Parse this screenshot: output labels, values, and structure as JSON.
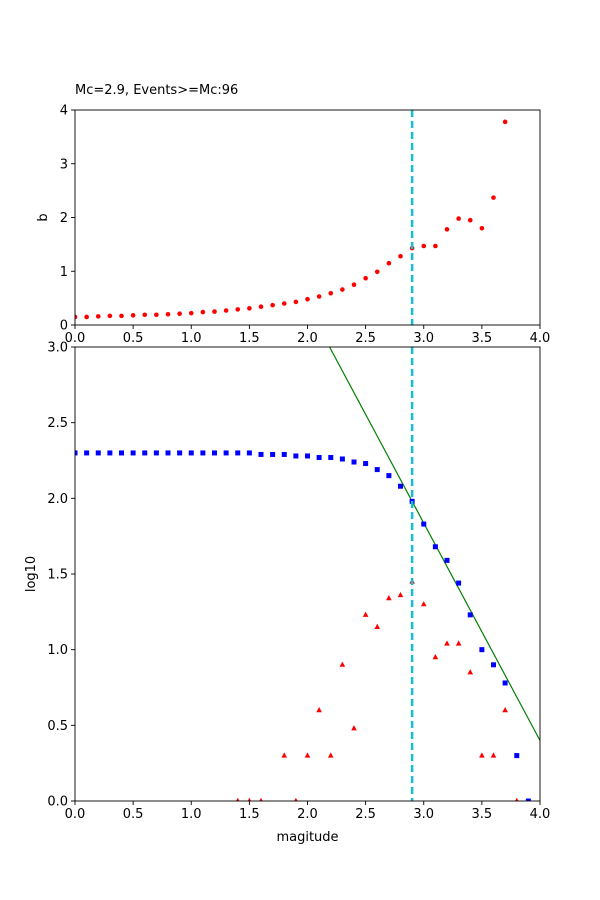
{
  "chart_data": [
    {
      "type": "scatter",
      "title": "Mc=2.9, Events>=Mc:96",
      "xlabel": "",
      "ylabel": "b",
      "xlim": [
        0,
        4
      ],
      "ylim": [
        0,
        4
      ],
      "xticks": [
        0.0,
        0.5,
        1.0,
        1.5,
        2.0,
        2.5,
        3.0,
        3.5,
        4.0
      ],
      "xtick_labels": [
        "0.0",
        "0.5",
        "1.0",
        "1.5",
        "2.0",
        "2.5",
        "3.0",
        "3.5",
        "4.0"
      ],
      "yticks": [
        0,
        1,
        2,
        3,
        4
      ],
      "ytick_labels": [
        "0",
        "1",
        "2",
        "3",
        "4"
      ],
      "grid": false,
      "mc_line": {
        "x": 2.9,
        "color": "#17becf",
        "style": "dashed"
      },
      "series": [
        {
          "marker": "circle",
          "color": "#ff0000",
          "x": [
            0.0,
            0.1,
            0.2,
            0.3,
            0.4,
            0.5,
            0.6,
            0.7,
            0.8,
            0.9,
            1.0,
            1.1,
            1.2,
            1.3,
            1.4,
            1.5,
            1.6,
            1.7,
            1.8,
            1.9,
            2.0,
            2.1,
            2.2,
            2.3,
            2.4,
            2.5,
            2.6,
            2.7,
            2.8,
            2.9,
            3.0,
            3.1,
            3.2,
            3.3,
            3.4,
            3.5,
            3.6,
            3.7
          ],
          "y": [
            0.15,
            0.15,
            0.16,
            0.17,
            0.17,
            0.18,
            0.19,
            0.19,
            0.2,
            0.21,
            0.22,
            0.24,
            0.25,
            0.27,
            0.29,
            0.31,
            0.34,
            0.37,
            0.4,
            0.43,
            0.48,
            0.53,
            0.59,
            0.66,
            0.75,
            0.87,
            0.99,
            1.15,
            1.28,
            1.43,
            1.47,
            1.47,
            1.78,
            1.98,
            1.95,
            1.8,
            2.37,
            3.78
          ]
        }
      ]
    },
    {
      "type": "scatter",
      "title": "",
      "xlabel": "magitude",
      "ylabel": "log10",
      "xlim": [
        0,
        4
      ],
      "ylim": [
        0,
        3
      ],
      "xticks": [
        0.0,
        0.5,
        1.0,
        1.5,
        2.0,
        2.5,
        3.0,
        3.5,
        4.0
      ],
      "xtick_labels": [
        "0.0",
        "0.5",
        "1.0",
        "1.5",
        "2.0",
        "2.5",
        "3.0",
        "3.5",
        "4.0"
      ],
      "yticks": [
        0.0,
        0.5,
        1.0,
        1.5,
        2.0,
        2.5,
        3.0
      ],
      "ytick_labels": [
        "0.0",
        "0.5",
        "1.0",
        "1.5",
        "2.0",
        "2.5",
        "3.0"
      ],
      "grid": false,
      "mc_line": {
        "x": 2.9,
        "color": "#17becf",
        "style": "dashed"
      },
      "fit_line": {
        "color": "#008000",
        "x": [
          2.19,
          4.0
        ],
        "y": [
          3.0,
          0.4
        ]
      },
      "series": [
        {
          "marker": "square",
          "color": "#0000ff",
          "x": [
            0.0,
            0.1,
            0.2,
            0.3,
            0.4,
            0.5,
            0.6,
            0.7,
            0.8,
            0.9,
            1.0,
            1.1,
            1.2,
            1.3,
            1.4,
            1.5,
            1.6,
            1.7,
            1.8,
            1.9,
            2.0,
            2.1,
            2.2,
            2.3,
            2.4,
            2.5,
            2.6,
            2.7,
            2.8,
            2.9,
            3.0,
            3.1,
            3.2,
            3.3,
            3.4,
            3.5,
            3.6,
            3.7,
            3.8,
            3.9
          ],
          "y": [
            2.3,
            2.3,
            2.3,
            2.3,
            2.3,
            2.3,
            2.3,
            2.3,
            2.3,
            2.3,
            2.3,
            2.3,
            2.3,
            2.3,
            2.3,
            2.3,
            2.29,
            2.29,
            2.29,
            2.28,
            2.28,
            2.27,
            2.27,
            2.26,
            2.24,
            2.23,
            2.19,
            2.15,
            2.08,
            1.98,
            1.83,
            1.68,
            1.59,
            1.44,
            1.23,
            1.0,
            0.9,
            0.78,
            0.3,
            0.0
          ]
        },
        {
          "marker": "triangle",
          "color": "#ff0000",
          "x": [
            1.4,
            1.5,
            1.6,
            1.8,
            1.9,
            2.0,
            2.1,
            2.2,
            2.3,
            2.4,
            2.5,
            2.6,
            2.7,
            2.8,
            2.9,
            3.0,
            3.1,
            3.2,
            3.3,
            3.4,
            3.5,
            3.6,
            3.7,
            3.8
          ],
          "y": [
            0.0,
            0.0,
            0.0,
            0.3,
            0.0,
            0.3,
            0.6,
            0.3,
            0.9,
            0.48,
            1.23,
            1.15,
            1.34,
            1.36,
            1.45,
            1.3,
            0.95,
            1.04,
            1.04,
            0.85,
            0.3,
            0.3,
            0.6,
            0.0
          ]
        }
      ]
    }
  ]
}
